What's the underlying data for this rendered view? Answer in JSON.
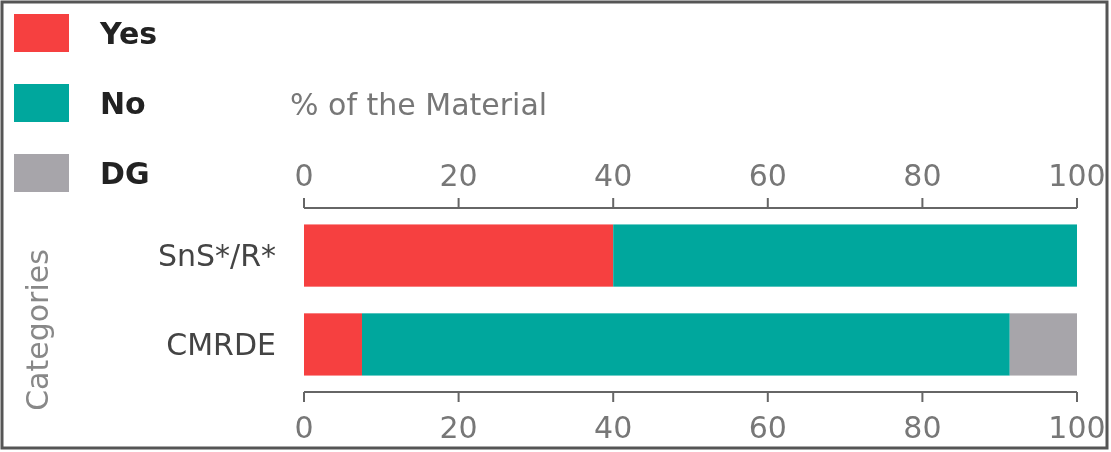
{
  "chart_data": {
    "type": "bar",
    "orientation": "horizontal",
    "stacked": true,
    "x2label": "% of the Material",
    "ylabel": "Categories",
    "categories": [
      "SnS*/R*",
      "CMRDE"
    ],
    "series": [
      {
        "name": "Yes",
        "color": "#f64040",
        "values": [
          40,
          7.5
        ]
      },
      {
        "name": "No",
        "color": "#00a79d",
        "values": [
          60,
          83.8
        ]
      },
      {
        "name": "DG",
        "color": "#a7a5aa",
        "values": [
          0,
          8.7
        ]
      }
    ],
    "xlim": [
      0,
      100
    ],
    "xticks": [
      0,
      20,
      40,
      60,
      80,
      100
    ],
    "x2lim": [
      0,
      100
    ],
    "x2ticks": [
      0,
      20,
      40,
      60,
      80,
      100
    ],
    "legend": "top left",
    "grid": false
  }
}
